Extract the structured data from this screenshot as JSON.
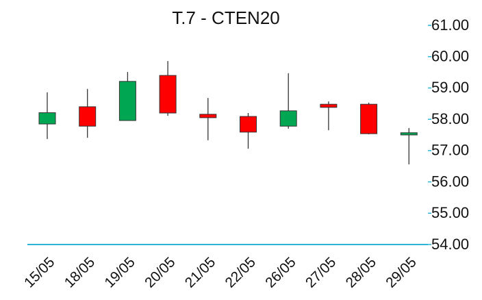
{
  "chart_data": {
    "type": "candlestick",
    "title": "T.7 - CTEN20",
    "x": [
      "15/05",
      "18/05",
      "19/05",
      "20/05",
      "21/05",
      "22/05",
      "26/05",
      "27/05",
      "28/05",
      "29/05"
    ],
    "open": [
      57.85,
      58.4,
      57.96,
      59.4,
      58.16,
      58.09,
      57.78,
      58.48,
      58.48,
      57.5
    ],
    "high": [
      58.86,
      58.97,
      59.51,
      59.86,
      58.68,
      58.2,
      59.47,
      58.57,
      58.53,
      57.72
    ],
    "low": [
      57.37,
      57.41,
      57.96,
      58.11,
      57.33,
      57.06,
      57.7,
      57.65,
      57.52,
      56.56
    ],
    "close": [
      58.21,
      57.78,
      59.21,
      58.2,
      58.05,
      57.59,
      58.27,
      58.38,
      57.54,
      57.57
    ],
    "up_color": "#00a651",
    "down_color": "#ff0000",
    "axis_color": "#29b6d9",
    "ylim": [
      54,
      61
    ],
    "yticks": [
      {
        "value": 54,
        "label": "54.00"
      },
      {
        "value": 55,
        "label": "55.00"
      },
      {
        "value": 56,
        "label": "56.00"
      },
      {
        "value": 57,
        "label": "57.00"
      },
      {
        "value": 58,
        "label": "58.00"
      },
      {
        "value": 59,
        "label": "59.00"
      },
      {
        "value": 60,
        "label": "60.00"
      },
      {
        "value": 61,
        "label": "61.00"
      }
    ],
    "y_axis_side": "right",
    "grid": false
  }
}
